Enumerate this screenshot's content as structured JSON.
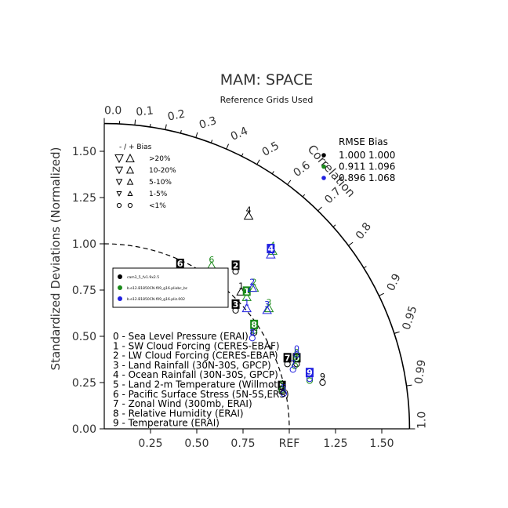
{
  "chart_data": {
    "type": "scatter",
    "title": "MAM: SPACE",
    "subtitle": "Reference Grids Used",
    "ylabel": "Standardized Deviations (Normalized)",
    "corr_label": "Correlation",
    "xlim": [
      0,
      1.65
    ],
    "ylim": [
      0,
      1.65
    ],
    "x_ticks": [
      {
        "v": 0.25,
        "label": "0.25"
      },
      {
        "v": 0.5,
        "label": "0.50"
      },
      {
        "v": 0.75,
        "label": "0.75"
      },
      {
        "v": 1.0,
        "label": "REF"
      },
      {
        "v": 1.25,
        "label": "1.25"
      },
      {
        "v": 1.5,
        "label": "1.50"
      }
    ],
    "y_ticks": [
      {
        "v": 0.0,
        "label": "0.00"
      },
      {
        "v": 0.25,
        "label": "0.25"
      },
      {
        "v": 0.5,
        "label": "0.50"
      },
      {
        "v": 0.75,
        "label": "0.75"
      },
      {
        "v": 1.0,
        "label": "1.00"
      },
      {
        "v": 1.25,
        "label": "1.25"
      },
      {
        "v": 1.5,
        "label": "1.50"
      }
    ],
    "corr_ticks": [
      {
        "r": 0.0,
        "label": "0.0"
      },
      {
        "r": 0.1,
        "label": "0.1"
      },
      {
        "r": 0.2,
        "label": "0.2"
      },
      {
        "r": 0.3,
        "label": "0.3"
      },
      {
        "r": 0.4,
        "label": "0.4"
      },
      {
        "r": 0.5,
        "label": "0.5"
      },
      {
        "r": 0.6,
        "label": "0.6"
      },
      {
        "r": 0.7,
        "label": "0.7"
      },
      {
        "r": 0.8,
        "label": "0.8"
      },
      {
        "r": 0.9,
        "label": "0.9"
      },
      {
        "r": 0.95,
        "label": "0.95"
      },
      {
        "r": 0.99,
        "label": "0.99"
      },
      {
        "r": 1.0,
        "label": "1.0"
      }
    ],
    "bias_legend": {
      "header": "-  /  +      Bias",
      "rows": [
        {
          "label": ">20%",
          "marker": "triangle-large"
        },
        {
          "label": "10-20%",
          "marker": "triangle-medium"
        },
        {
          "label": "5-10%",
          "marker": "triangle-small"
        },
        {
          "label": "1-5%",
          "marker": "triangle-tiny"
        },
        {
          "label": "<1%",
          "marker": "circle"
        }
      ]
    },
    "rmse_legend": {
      "header": "RMSE  Bias",
      "rows": [
        {
          "color": "#000000",
          "rmse": "1.000",
          "bias": "1.000"
        },
        {
          "color": "#1a8a1a",
          "rmse": "0.911",
          "bias": "1.096"
        },
        {
          "color": "#2020e0",
          "rmse": "0.896",
          "bias": "1.068"
        }
      ]
    },
    "case_legend": [
      {
        "color": "#000000",
        "label": "cam3_5_fv1.9x2.5"
      },
      {
        "color": "#1a8a1a",
        "label": "b.e12.B1850CN.f09_g16.pliobc_bc"
      },
      {
        "color": "#2020e0",
        "label": "b.e12.B1850CN.f09_g16.pliz.002"
      }
    ],
    "variables": [
      "0 - Sea Level Pressure (ERAI)",
      "1 - SW Cloud Forcing (CERES-EBAF)",
      "2 - LW Cloud Forcing (CERES-EBAF)",
      "3 - Land Rainfall (30N-30S, GPCP)",
      "4 - Ocean Rainfall (30N-30S, GPCP)",
      "5 - Land 2-m Temperature (Willmott)",
      "6 - Pacific Surface Stress (5N-5S,ERS)",
      "7 - Zonal Wind (300mb, ERAI)",
      "8 - Relative Humidity (ERAI)",
      "9 - Temperature (ERAI)"
    ],
    "series": [
      {
        "color": "#000000",
        "points": [
          {
            "id": "0",
            "x": 1.04,
            "y": 0.38,
            "marker": "circle",
            "box": true
          },
          {
            "id": "1",
            "x": 0.74,
            "y": 0.77,
            "marker": "triangle",
            "box": false
          },
          {
            "id": "2",
            "x": 0.71,
            "y": 0.88,
            "marker": "circle",
            "box": true
          },
          {
            "id": "3",
            "x": 0.71,
            "y": 0.67,
            "marker": "circle",
            "box": true
          },
          {
            "id": "4",
            "x": 0.78,
            "y": 1.18,
            "marker": "triangle",
            "box": false
          },
          {
            "id": "5",
            "x": 0.96,
            "y": 0.23,
            "marker": "circle",
            "box": true
          },
          {
            "id": "6",
            "x": 0.41,
            "y": 0.89,
            "marker": "triangle",
            "box": true
          },
          {
            "id": "7",
            "x": 0.99,
            "y": 0.38,
            "marker": "circle",
            "box": true
          },
          {
            "id": "8",
            "x": 0.81,
            "y": 0.55,
            "marker": "circle",
            "box": false
          },
          {
            "id": "9",
            "x": 1.18,
            "y": 0.28,
            "marker": "circle",
            "box": false
          }
        ]
      },
      {
        "color": "#1a8a1a",
        "points": [
          {
            "id": "0",
            "x": 1.04,
            "y": 0.41,
            "marker": "circle",
            "box": false
          },
          {
            "id": "1",
            "x": 0.77,
            "y": 0.74,
            "marker": "triangle",
            "box": true
          },
          {
            "id": "2",
            "x": 0.81,
            "y": 0.79,
            "marker": "triangle",
            "box": false
          },
          {
            "id": "3",
            "x": 0.89,
            "y": 0.68,
            "marker": "triangle",
            "box": false
          },
          {
            "id": "4",
            "x": 0.91,
            "y": 0.99,
            "marker": "triangle",
            "box": false
          },
          {
            "id": "5",
            "x": 0.96,
            "y": 0.24,
            "marker": "circle",
            "box": false
          },
          {
            "id": "6",
            "x": 0.58,
            "y": 0.91,
            "marker": "triangle",
            "box": false
          },
          {
            "id": "7",
            "x": 1.03,
            "y": 0.37,
            "marker": "circle",
            "box": false
          },
          {
            "id": "8",
            "x": 0.81,
            "y": 0.56,
            "marker": "circle",
            "box": true
          },
          {
            "id": "9",
            "x": 1.11,
            "y": 0.29,
            "marker": "circle",
            "box": false
          }
        ]
      },
      {
        "color": "#2020e0",
        "points": [
          {
            "id": "0",
            "x": 1.04,
            "y": 0.43,
            "marker": "circle",
            "box": false
          },
          {
            "id": "1",
            "x": 0.77,
            "y": 0.68,
            "marker": "triangle",
            "box": false
          },
          {
            "id": "2",
            "x": 0.8,
            "y": 0.79,
            "marker": "triangle",
            "box": false
          },
          {
            "id": "3",
            "x": 0.88,
            "y": 0.67,
            "marker": "triangle",
            "box": false
          },
          {
            "id": "4",
            "x": 0.9,
            "y": 0.97,
            "marker": "triangle",
            "box": true
          },
          {
            "id": "5",
            "x": 0.97,
            "y": 0.22,
            "marker": "circle",
            "box": false
          },
          {
            "id": "6",
            "x": 0.56,
            "y": 0.84,
            "marker": "triangle",
            "box": false
          },
          {
            "id": "7",
            "x": 1.02,
            "y": 0.35,
            "marker": "circle",
            "box": false
          },
          {
            "id": "8",
            "x": 0.8,
            "y": 0.52,
            "marker": "circle",
            "box": false
          },
          {
            "id": "9",
            "x": 1.11,
            "y": 0.3,
            "marker": "circle",
            "box": true
          }
        ]
      }
    ]
  }
}
